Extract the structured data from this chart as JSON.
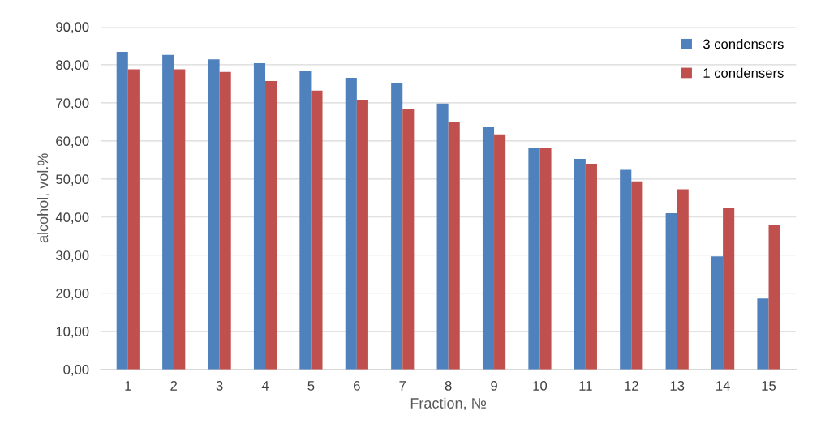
{
  "chart_data": {
    "type": "bar",
    "xlabel": "Fraction, №",
    "ylabel": "alcohol, vol.%",
    "categories": [
      "1",
      "2",
      "3",
      "4",
      "5",
      "6",
      "7",
      "8",
      "9",
      "10",
      "11",
      "12",
      "13",
      "14",
      "15"
    ],
    "series": [
      {
        "name": "3 condensers",
        "color": "#4f81bd",
        "values": [
          83.4,
          82.6,
          81.4,
          80.4,
          78.4,
          76.6,
          75.3,
          69.8,
          63.6,
          58.2,
          55.3,
          52.4,
          41.0,
          29.7,
          18.6
        ]
      },
      {
        "name": "1 condensers",
        "color": "#c0504d",
        "values": [
          78.8,
          78.8,
          78.1,
          75.7,
          73.2,
          70.8,
          68.5,
          65.1,
          61.7,
          58.2,
          54.0,
          49.4,
          47.3,
          42.3,
          37.9
        ]
      }
    ],
    "ylim": [
      0,
      90
    ],
    "yticks": [
      {
        "value": 0,
        "label": "0,00"
      },
      {
        "value": 10,
        "label": "10,00"
      },
      {
        "value": 20,
        "label": "20,00"
      },
      {
        "value": 30,
        "label": "30,00"
      },
      {
        "value": 40,
        "label": "40,00"
      },
      {
        "value": 50,
        "label": "50,00"
      },
      {
        "value": 60,
        "label": "60,00"
      },
      {
        "value": 70,
        "label": "70,00"
      },
      {
        "value": 80,
        "label": "80,00"
      },
      {
        "value": 90,
        "label": "90,00"
      }
    ],
    "grid": "y",
    "legend": "top right"
  }
}
